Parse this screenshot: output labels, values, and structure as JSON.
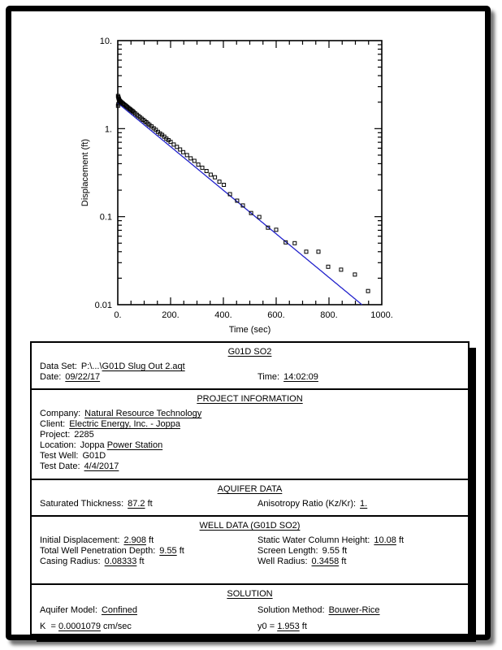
{
  "chart_data": {
    "type": "scatter",
    "title": "",
    "xlabel": "Time (sec)",
    "ylabel": "Displacement (ft)",
    "x_axis": {
      "min": 0,
      "max": 1000,
      "minor_step": 50,
      "tick_values": [
        0,
        200,
        400,
        600,
        800,
        1000
      ],
      "tick_labels": [
        "0.",
        "200.",
        "400.",
        "600.",
        "800.",
        "1000."
      ]
    },
    "y_axis": {
      "scale": "log",
      "min": 0.01,
      "max": 10,
      "tick_values": [
        10,
        1,
        0.1,
        0.01
      ],
      "tick_labels": [
        "10.",
        "1.",
        "0.1",
        "0.01"
      ]
    },
    "marker": {
      "shape": "open-square",
      "size": 4,
      "color": "#000000"
    },
    "fit_line": {
      "name": "Bouwer-Rice fit",
      "color": "#2222cc",
      "y0": 1.953,
      "decay_per_sec": 0.005703,
      "t_start": 0,
      "t_end": 925
    },
    "series": [
      {
        "name": "G01D SO2 observed displacement",
        "points": [
          [
            1,
            2.35
          ],
          [
            1,
            1.82
          ],
          [
            2,
            2.28
          ],
          [
            2,
            1.9
          ],
          [
            3,
            2.22
          ],
          [
            4,
            2.18
          ],
          [
            5,
            2.14
          ],
          [
            6,
            2.1
          ],
          [
            8,
            2.06
          ],
          [
            10,
            2.03
          ],
          [
            12,
            2.01
          ],
          [
            16,
            1.97
          ],
          [
            20,
            1.92
          ],
          [
            24,
            1.88
          ],
          [
            28,
            1.84
          ],
          [
            32,
            1.8
          ],
          [
            36,
            1.76
          ],
          [
            40,
            1.72
          ],
          [
            44,
            1.68
          ],
          [
            48,
            1.65
          ],
          [
            52,
            1.61
          ],
          [
            56,
            1.58
          ],
          [
            60,
            1.54
          ],
          [
            66,
            1.49
          ],
          [
            72,
            1.44
          ],
          [
            78,
            1.39
          ],
          [
            84,
            1.35
          ],
          [
            90,
            1.3
          ],
          [
            96,
            1.26
          ],
          [
            102,
            1.22
          ],
          [
            108,
            1.18
          ],
          [
            114,
            1.14
          ],
          [
            120,
            1.1
          ],
          [
            128,
            1.06
          ],
          [
            136,
            1.01
          ],
          [
            144,
            0.97
          ],
          [
            152,
            0.92
          ],
          [
            160,
            0.88
          ],
          [
            168,
            0.85
          ],
          [
            176,
            0.81
          ],
          [
            184,
            0.77
          ],
          [
            192,
            0.74
          ],
          [
            200,
            0.707
          ],
          [
            212,
            0.66
          ],
          [
            224,
            0.62
          ],
          [
            236,
            0.58
          ],
          [
            248,
            0.54
          ],
          [
            262,
            0.5
          ],
          [
            276,
            0.46
          ],
          [
            290,
            0.43
          ],
          [
            305,
            0.39
          ],
          [
            320,
            0.36
          ],
          [
            336,
            0.33
          ],
          [
            352,
            0.3
          ],
          [
            368,
            0.28
          ],
          [
            385,
            0.25
          ],
          [
            402,
            0.23
          ],
          [
            425,
            0.18
          ],
          [
            452,
            0.152
          ],
          [
            474,
            0.134
          ],
          [
            505,
            0.11
          ],
          [
            536,
            0.099
          ],
          [
            569,
            0.075
          ],
          [
            600,
            0.071
          ],
          [
            636,
            0.051
          ],
          [
            670,
            0.05
          ],
          [
            714,
            0.04
          ],
          [
            760,
            0.04
          ],
          [
            797,
            0.027
          ],
          [
            846,
            0.025
          ],
          [
            898,
            0.022
          ],
          [
            948,
            0.0143
          ]
        ]
      }
    ]
  },
  "report": {
    "title": "G01D SO2",
    "header": {
      "dataset_label": "Data Set:",
      "dataset_prefix": "P:\\...\\",
      "dataset_file": "G01D Slug Out 2.aqt",
      "date_label": "Date:",
      "date": "09/22/17",
      "time_label": "Time:",
      "time": "14:02:09"
    },
    "project": {
      "heading": "PROJECT INFORMATION",
      "company_label": "Company:",
      "company": "Natural Resource Technology",
      "client_label": "Client:",
      "client": "Electric Energy, Inc. - Joppa",
      "project_label": "Project:",
      "project": "2285",
      "location_label": "Location:",
      "location_plain": "Joppa",
      "location_underlined": "Power Station",
      "test_well_label": "Test Well:",
      "test_well": "G01D",
      "test_date_label": "Test Date:",
      "test_date": "4/4/2017"
    },
    "aquifer": {
      "heading": "AQUIFER DATA",
      "sat_label": "Saturated Thickness:",
      "sat_value": "87.2",
      "sat_unit": "ft",
      "aniso_label": "Anisotropy Ratio (Kz/Kr):",
      "aniso_value": "1."
    },
    "well": {
      "heading": "WELL DATA (G01D SO2)",
      "init_disp_label": "Initial Displacement:",
      "init_disp_value": "2.908",
      "init_disp_unit": "ft",
      "total_pen_label": "Total Well Penetration Depth:",
      "total_pen_value": "9.55",
      "total_pen_unit": "ft",
      "casing_label": "Casing Radius:",
      "casing_value": "0.08333",
      "casing_unit": "ft",
      "static_label": "Static Water Column Height:",
      "static_value": "10.08",
      "static_unit": "ft",
      "screen_label": "Screen Length:",
      "screen_value": "9.55",
      "screen_unit": "ft",
      "well_r_label": "Well Radius:",
      "well_r_value": "0.3458",
      "well_r_unit": "ft"
    },
    "solution": {
      "heading": "SOLUTION",
      "model_label": "Aquifer Model:",
      "model": "Confined",
      "method_label": "Solution Method:",
      "method": "Bouwer-Rice",
      "k_label": "K",
      "k_eq": "=",
      "k_value": "0.0001079",
      "k_unit": "cm/sec",
      "y0_label": "y0",
      "y0_eq": "=",
      "y0_value": "1.953",
      "y0_unit": "ft"
    }
  }
}
